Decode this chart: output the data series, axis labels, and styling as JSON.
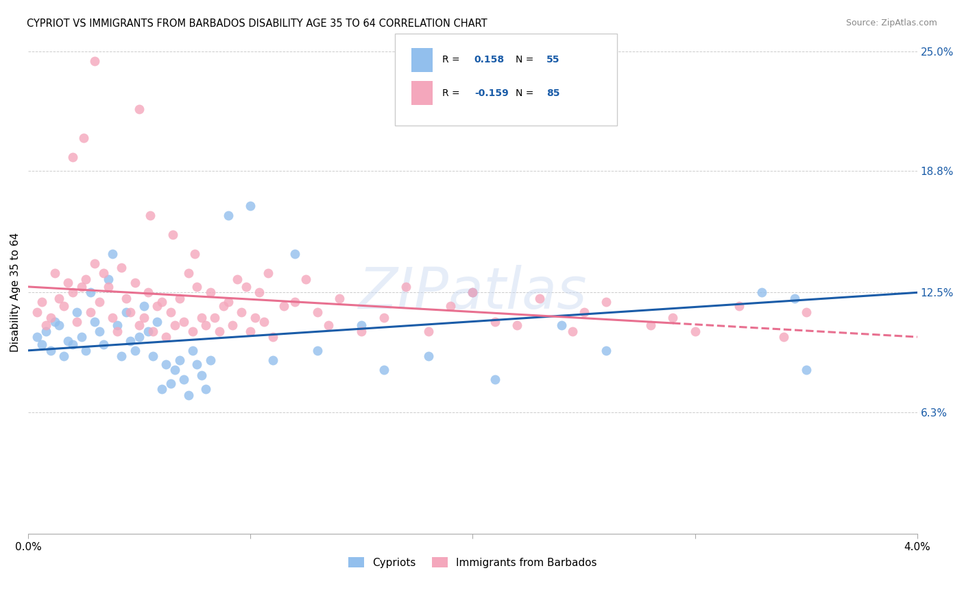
{
  "title": "CYPRIOT VS IMMIGRANTS FROM BARBADOS DISABILITY AGE 35 TO 64 CORRELATION CHART",
  "source": "Source: ZipAtlas.com",
  "ylabel": "Disability Age 35 to 64",
  "x_min": 0.0,
  "x_max": 4.0,
  "y_min": 0.0,
  "y_max": 25.0,
  "y_ticks": [
    6.3,
    12.5,
    18.8,
    25.0
  ],
  "blue_color": "#92BFED",
  "pink_color": "#F4A7BC",
  "blue_line_color": "#1A5CA8",
  "pink_line_color": "#E87090",
  "R_blue": 0.158,
  "N_blue": 55,
  "R_pink": -0.159,
  "N_pink": 85,
  "watermark": "ZIPatlas",
  "blue_points_x": [
    0.04,
    0.06,
    0.08,
    0.1,
    0.12,
    0.14,
    0.16,
    0.18,
    0.2,
    0.22,
    0.24,
    0.26,
    0.28,
    0.3,
    0.32,
    0.34,
    0.36,
    0.38,
    0.4,
    0.42,
    0.44,
    0.46,
    0.48,
    0.5,
    0.52,
    0.54,
    0.56,
    0.58,
    0.6,
    0.62,
    0.64,
    0.66,
    0.68,
    0.7,
    0.72,
    0.74,
    0.76,
    0.78,
    0.8,
    0.82,
    0.9,
    1.0,
    1.1,
    1.2,
    1.3,
    1.5,
    1.6,
    1.8,
    2.0,
    2.1,
    2.4,
    2.6,
    3.3,
    3.45,
    3.5
  ],
  "blue_points_y": [
    10.2,
    9.8,
    10.5,
    9.5,
    11.0,
    10.8,
    9.2,
    10.0,
    9.8,
    11.5,
    10.2,
    9.5,
    12.5,
    11.0,
    10.5,
    9.8,
    13.2,
    14.5,
    10.8,
    9.2,
    11.5,
    10.0,
    9.5,
    10.2,
    11.8,
    10.5,
    9.2,
    11.0,
    7.5,
    8.8,
    7.8,
    8.5,
    9.0,
    8.0,
    7.2,
    9.5,
    8.8,
    8.2,
    7.5,
    9.0,
    16.5,
    17.0,
    9.0,
    14.5,
    9.5,
    10.8,
    8.5,
    9.2,
    12.5,
    8.0,
    10.8,
    9.5,
    12.5,
    12.2,
    8.5
  ],
  "pink_points_x": [
    0.04,
    0.06,
    0.08,
    0.1,
    0.12,
    0.14,
    0.16,
    0.18,
    0.2,
    0.22,
    0.24,
    0.26,
    0.28,
    0.3,
    0.32,
    0.34,
    0.36,
    0.38,
    0.4,
    0.42,
    0.44,
    0.46,
    0.48,
    0.5,
    0.52,
    0.54,
    0.56,
    0.58,
    0.6,
    0.62,
    0.64,
    0.66,
    0.68,
    0.7,
    0.72,
    0.74,
    0.76,
    0.78,
    0.8,
    0.82,
    0.84,
    0.86,
    0.88,
    0.9,
    0.92,
    0.94,
    0.96,
    0.98,
    1.0,
    1.02,
    1.04,
    1.06,
    1.08,
    1.1,
    1.15,
    1.2,
    1.25,
    1.3,
    1.35,
    1.4,
    1.5,
    1.6,
    1.7,
    1.8,
    1.9,
    2.0,
    2.1,
    2.2,
    2.3,
    2.45,
    2.5,
    2.6,
    2.8,
    2.9,
    3.0,
    3.2,
    3.4,
    3.5,
    0.3,
    0.5,
    0.25,
    0.2,
    0.55,
    0.65,
    0.75
  ],
  "pink_points_y": [
    11.5,
    12.0,
    10.8,
    11.2,
    13.5,
    12.2,
    11.8,
    13.0,
    12.5,
    11.0,
    12.8,
    13.2,
    11.5,
    14.0,
    12.0,
    13.5,
    12.8,
    11.2,
    10.5,
    13.8,
    12.2,
    11.5,
    13.0,
    10.8,
    11.2,
    12.5,
    10.5,
    11.8,
    12.0,
    10.2,
    11.5,
    10.8,
    12.2,
    11.0,
    13.5,
    10.5,
    12.8,
    11.2,
    10.8,
    12.5,
    11.2,
    10.5,
    11.8,
    12.0,
    10.8,
    13.2,
    11.5,
    12.8,
    10.5,
    11.2,
    12.5,
    11.0,
    13.5,
    10.2,
    11.8,
    12.0,
    13.2,
    11.5,
    10.8,
    12.2,
    10.5,
    11.2,
    12.8,
    10.5,
    11.8,
    12.5,
    11.0,
    10.8,
    12.2,
    10.5,
    11.5,
    12.0,
    10.8,
    11.2,
    10.5,
    11.8,
    10.2,
    11.5,
    24.5,
    22.0,
    20.5,
    19.5,
    16.5,
    15.5,
    14.5
  ]
}
